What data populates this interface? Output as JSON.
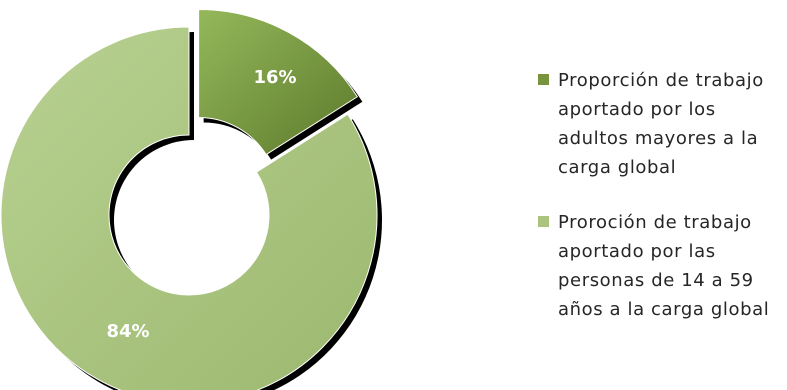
{
  "chart_data": {
    "type": "pie",
    "variant": "doughnut-exploded",
    "categories": [
      "Proporción de trabajo aportado por los adultos mayores a la carga global",
      "Proroción de trabajo aportado por las personas de 14 a 59 años a la carga global"
    ],
    "values": [
      16,
      84
    ],
    "data_labels": [
      "16%",
      "84%"
    ],
    "colors": [
      "#77933c",
      "#a9c47e"
    ],
    "legend_position": "right"
  }
}
